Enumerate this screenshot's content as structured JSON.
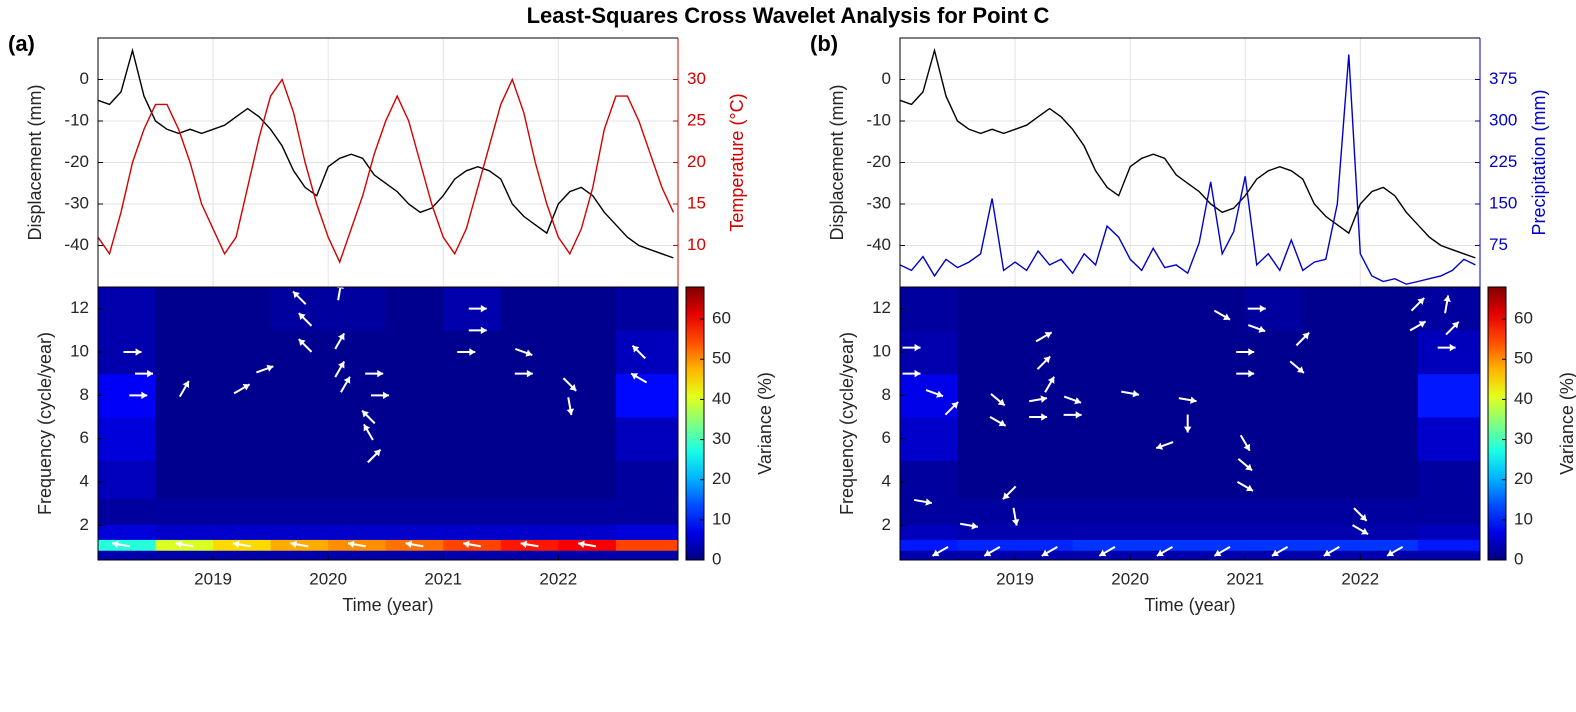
{
  "title": "Least-Squares Cross Wavelet Analysis for Point C",
  "chart_data": [
    {
      "type": "line",
      "panel_label": "(a)",
      "x": [
        2018.0,
        2018.1,
        2018.2,
        2018.3,
        2018.4,
        2018.5,
        2018.6,
        2018.7,
        2018.8,
        2018.9,
        2019.0,
        2019.1,
        2019.2,
        2019.3,
        2019.4,
        2019.5,
        2019.6,
        2019.7,
        2019.8,
        2019.9,
        2020.0,
        2020.1,
        2020.2,
        2020.3,
        2020.4,
        2020.5,
        2020.6,
        2020.7,
        2020.8,
        2020.9,
        2021.0,
        2021.1,
        2021.2,
        2021.3,
        2021.4,
        2021.5,
        2021.6,
        2021.7,
        2021.8,
        2021.9,
        2022.0,
        2022.1,
        2022.2,
        2022.3,
        2022.4,
        2022.5,
        2022.6,
        2022.7,
        2022.8,
        2022.9,
        2023.0
      ],
      "xlim": [
        2018,
        2023.04
      ],
      "xticks": [
        2019,
        2020,
        2021,
        2022
      ],
      "ylim": [
        -50,
        10
      ],
      "yticks": [
        -40,
        -30,
        -20,
        -10,
        0
      ],
      "ylabel": "Displacement (mm)",
      "y2lim": [
        5,
        35
      ],
      "y2ticks": [
        10,
        15,
        20,
        25,
        30
      ],
      "y2label": "Temperature (°C)",
      "grid": true,
      "series": [
        {
          "color": "#000000",
          "values": [
            -5,
            -6,
            -3,
            7,
            -4,
            -10,
            -12,
            -13,
            -12,
            -13,
            -12,
            -11,
            -9,
            -7,
            -9,
            -12,
            -16,
            -22,
            -26,
            -28,
            -21,
            -19,
            -18,
            -19,
            -23,
            -25,
            -27,
            -30,
            -32,
            -31,
            -28,
            -24,
            -22,
            -21,
            -22,
            -24,
            -30,
            -33,
            -35,
            -37,
            -30,
            -27,
            -26,
            -28,
            -32,
            -35,
            -38,
            -40,
            -41,
            -42,
            -43
          ]
        },
        {
          "color": "#d40000",
          "axis": "y2",
          "values": [
            11,
            9,
            14,
            20,
            24,
            27,
            27,
            24,
            20,
            15,
            12,
            9,
            11,
            17,
            23,
            28,
            30,
            26,
            20,
            15,
            11,
            8,
            12,
            16,
            21,
            25,
            28,
            25,
            20,
            15,
            11,
            9,
            12,
            17,
            22,
            27,
            30,
            26,
            20,
            15,
            11,
            9,
            12,
            17,
            24,
            28,
            28,
            25,
            21,
            17,
            14
          ]
        }
      ]
    },
    {
      "type": "heatmap",
      "x": [
        2018.25,
        2018.75,
        2019.25,
        2019.75,
        2020.25,
        2020.75,
        2021.25,
        2021.75,
        2022.25,
        2022.75
      ],
      "y": [
        0.6,
        1.1,
        1.6,
        2.5,
        4,
        6,
        8,
        10,
        12
      ],
      "z": [
        [
          3,
          3,
          3,
          3,
          3,
          3,
          3,
          3,
          3,
          3
        ],
        [
          28,
          40,
          45,
          48,
          50,
          52,
          55,
          58,
          60,
          55
        ],
        [
          6,
          5,
          5,
          5,
          5,
          5,
          5,
          5,
          5,
          6
        ],
        [
          2,
          2,
          2,
          2,
          2,
          2,
          2,
          2,
          2,
          2
        ],
        [
          4,
          1,
          1,
          1,
          1,
          1,
          1,
          1,
          1,
          2
        ],
        [
          6,
          1,
          1,
          1,
          1,
          1,
          1,
          1,
          1,
          4
        ],
        [
          8,
          1,
          1,
          1,
          1,
          1,
          1,
          1,
          1,
          9
        ],
        [
          3,
          1,
          1,
          1,
          1,
          1,
          1,
          1,
          1,
          4
        ],
        [
          3,
          1,
          1,
          2,
          2,
          1,
          3,
          1,
          1,
          2
        ]
      ],
      "xlim": [
        2018,
        2023.04
      ],
      "xticks": [
        2019,
        2020,
        2021,
        2022
      ],
      "xlabel": "Time (year)",
      "ylim": [
        0.4,
        13
      ],
      "yticks": [
        2,
        4,
        6,
        8,
        10,
        12
      ],
      "ylabel": "Frequency (cycle/year)",
      "clim": [
        0,
        68
      ],
      "cticks": [
        0,
        10,
        20,
        30,
        40,
        50,
        60
      ],
      "clabel": "Variance (%)",
      "arrows": [
        {
          "x": 2018.2,
          "y": 1.1,
          "phase": 170
        },
        {
          "x": 2018.75,
          "y": 1.1,
          "phase": 170
        },
        {
          "x": 2019.25,
          "y": 1.1,
          "phase": 170
        },
        {
          "x": 2019.75,
          "y": 1.1,
          "phase": 170
        },
        {
          "x": 2020.25,
          "y": 1.1,
          "phase": 170
        },
        {
          "x": 2020.75,
          "y": 1.1,
          "phase": 170
        },
        {
          "x": 2021.25,
          "y": 1.1,
          "phase": 170
        },
        {
          "x": 2021.75,
          "y": 1.1,
          "phase": 170
        },
        {
          "x": 2022.25,
          "y": 1.1,
          "phase": 170
        },
        {
          "x": 2018.3,
          "y": 10,
          "phase": 0
        },
        {
          "x": 2018.4,
          "y": 9,
          "phase": 0
        },
        {
          "x": 2018.35,
          "y": 8,
          "phase": 0
        },
        {
          "x": 2018.75,
          "y": 8.3,
          "phase": 60
        },
        {
          "x": 2019.25,
          "y": 8.3,
          "phase": 30
        },
        {
          "x": 2019.45,
          "y": 9.2,
          "phase": 20
        },
        {
          "x": 2019.75,
          "y": 12.5,
          "phase": 135
        },
        {
          "x": 2019.8,
          "y": 11.5,
          "phase": 135
        },
        {
          "x": 2019.8,
          "y": 10.3,
          "phase": 135
        },
        {
          "x": 2020.1,
          "y": 12.8,
          "phase": 80
        },
        {
          "x": 2020.1,
          "y": 10.5,
          "phase": 60
        },
        {
          "x": 2020.1,
          "y": 9.2,
          "phase": 60
        },
        {
          "x": 2020.15,
          "y": 8.5,
          "phase": 60
        },
        {
          "x": 2020.4,
          "y": 9,
          "phase": 0
        },
        {
          "x": 2020.45,
          "y": 8,
          "phase": 0
        },
        {
          "x": 2020.35,
          "y": 7,
          "phase": 135
        },
        {
          "x": 2020.35,
          "y": 6.3,
          "phase": 120
        },
        {
          "x": 2020.4,
          "y": 5.2,
          "phase": 45
        },
        {
          "x": 2021.3,
          "y": 12,
          "phase": 0
        },
        {
          "x": 2021.3,
          "y": 11,
          "phase": 0
        },
        {
          "x": 2021.2,
          "y": 10,
          "phase": 0
        },
        {
          "x": 2021.7,
          "y": 10,
          "phase": -20
        },
        {
          "x": 2021.7,
          "y": 9,
          "phase": 0
        },
        {
          "x": 2022.1,
          "y": 8.5,
          "phase": -45
        },
        {
          "x": 2022.1,
          "y": 7.5,
          "phase": -80
        },
        {
          "x": 2022.7,
          "y": 10,
          "phase": 135
        },
        {
          "x": 2022.7,
          "y": 8.8,
          "phase": 150
        }
      ]
    },
    {
      "type": "line",
      "panel_label": "(b)",
      "x": [
        2018.0,
        2018.1,
        2018.2,
        2018.3,
        2018.4,
        2018.5,
        2018.6,
        2018.7,
        2018.8,
        2018.9,
        2019.0,
        2019.1,
        2019.2,
        2019.3,
        2019.4,
        2019.5,
        2019.6,
        2019.7,
        2019.8,
        2019.9,
        2020.0,
        2020.1,
        2020.2,
        2020.3,
        2020.4,
        2020.5,
        2020.6,
        2020.7,
        2020.8,
        2020.9,
        2021.0,
        2021.1,
        2021.2,
        2021.3,
        2021.4,
        2021.5,
        2021.6,
        2021.7,
        2021.8,
        2021.9,
        2022.0,
        2022.1,
        2022.2,
        2022.3,
        2022.4,
        2022.5,
        2022.6,
        2022.7,
        2022.8,
        2022.9,
        2023.0
      ],
      "xlim": [
        2018,
        2023.04
      ],
      "xticks": [
        2019,
        2020,
        2021,
        2022
      ],
      "ylim": [
        -50,
        10
      ],
      "yticks": [
        -40,
        -30,
        -20,
        -10,
        0
      ],
      "ylabel": "Displacement (mm)",
      "y2lim": [
        0,
        450
      ],
      "y2ticks": [
        75,
        150,
        225,
        300,
        375
      ],
      "y2label": "Precipitation (mm)",
      "grid": true,
      "series": [
        {
          "color": "#000000",
          "values": [
            -5,
            -6,
            -3,
            7,
            -4,
            -10,
            -12,
            -13,
            -12,
            -13,
            -12,
            -11,
            -9,
            -7,
            -9,
            -12,
            -16,
            -22,
            -26,
            -28,
            -21,
            -19,
            -18,
            -19,
            -23,
            -25,
            -27,
            -30,
            -32,
            -31,
            -28,
            -24,
            -22,
            -21,
            -22,
            -24,
            -30,
            -33,
            -35,
            -37,
            -30,
            -27,
            -26,
            -28,
            -32,
            -35,
            -38,
            -40,
            -41,
            -42,
            -43
          ]
        },
        {
          "color": "#0000c8",
          "axis": "y2",
          "values": [
            40,
            30,
            55,
            20,
            50,
            35,
            45,
            60,
            160,
            30,
            45,
            30,
            65,
            40,
            50,
            25,
            60,
            40,
            110,
            90,
            50,
            30,
            70,
            35,
            40,
            25,
            80,
            190,
            60,
            100,
            200,
            40,
            60,
            30,
            85,
            30,
            45,
            50,
            150,
            420,
            60,
            20,
            10,
            15,
            5,
            10,
            15,
            20,
            30,
            50,
            40
          ]
        }
      ]
    },
    {
      "type": "heatmap",
      "x": [
        2018.25,
        2018.75,
        2019.25,
        2019.75,
        2020.25,
        2020.75,
        2021.25,
        2021.75,
        2022.25,
        2022.75
      ],
      "y": [
        0.6,
        1.1,
        1.6,
        2.5,
        4,
        6,
        8,
        10,
        12
      ],
      "z": [
        [
          3,
          3,
          3,
          3,
          3,
          3,
          3,
          3,
          3,
          3
        ],
        [
          10,
          11,
          11,
          12,
          12,
          12,
          12,
          12,
          12,
          10
        ],
        [
          4,
          3,
          3,
          3,
          3,
          3,
          3,
          3,
          3,
          4
        ],
        [
          2,
          2,
          2,
          2,
          2,
          2,
          2,
          2,
          2,
          2
        ],
        [
          2,
          1,
          1,
          1,
          1,
          1,
          1,
          1,
          1,
          2
        ],
        [
          5,
          1,
          1,
          1,
          1,
          1,
          1,
          1,
          1,
          5
        ],
        [
          7,
          1,
          1,
          1,
          1,
          1,
          1,
          1,
          1,
          10
        ],
        [
          3,
          1,
          1,
          1,
          1,
          1,
          1,
          1,
          1,
          4
        ],
        [
          2,
          1,
          1,
          1,
          1,
          1,
          2,
          1,
          1,
          2
        ]
      ],
      "xlim": [
        2018,
        2023.04
      ],
      "xticks": [
        2019,
        2020,
        2021,
        2022
      ],
      "xlabel": "Time (year)",
      "ylim": [
        0.4,
        13
      ],
      "yticks": [
        2,
        4,
        6,
        8,
        10,
        12
      ],
      "ylabel": "Frequency (cycle/year)",
      "clim": [
        0,
        68
      ],
      "cticks": [
        0,
        10,
        20,
        30,
        40,
        50,
        60
      ],
      "clabel": "Variance (%)",
      "arrows": [
        {
          "x": 2018.35,
          "y": 0.8,
          "phase": 210
        },
        {
          "x": 2018.8,
          "y": 0.8,
          "phase": 210
        },
        {
          "x": 2019.3,
          "y": 0.8,
          "phase": 210
        },
        {
          "x": 2019.8,
          "y": 0.8,
          "phase": 210
        },
        {
          "x": 2020.3,
          "y": 0.8,
          "phase": 210
        },
        {
          "x": 2020.8,
          "y": 0.8,
          "phase": 210
        },
        {
          "x": 2021.3,
          "y": 0.8,
          "phase": 210
        },
        {
          "x": 2021.75,
          "y": 0.8,
          "phase": 210
        },
        {
          "x": 2022.3,
          "y": 0.8,
          "phase": 210
        },
        {
          "x": 2018.1,
          "y": 10.2,
          "phase": 0
        },
        {
          "x": 2018.1,
          "y": 9,
          "phase": 0
        },
        {
          "x": 2018.3,
          "y": 8.1,
          "phase": -20
        },
        {
          "x": 2018.45,
          "y": 7.4,
          "phase": 45
        },
        {
          "x": 2018.85,
          "y": 7.8,
          "phase": -40
        },
        {
          "x": 2018.85,
          "y": 6.8,
          "phase": -30
        },
        {
          "x": 2019.25,
          "y": 10.7,
          "phase": 30
        },
        {
          "x": 2019.25,
          "y": 9.5,
          "phase": 45
        },
        {
          "x": 2019.3,
          "y": 8.5,
          "phase": 60
        },
        {
          "x": 2019.2,
          "y": 7.8,
          "phase": 10
        },
        {
          "x": 2019.2,
          "y": 7,
          "phase": 0
        },
        {
          "x": 2019.5,
          "y": 7.8,
          "phase": -20
        },
        {
          "x": 2019.5,
          "y": 7.1,
          "phase": 0
        },
        {
          "x": 2020.0,
          "y": 8.1,
          "phase": -10
        },
        {
          "x": 2020.5,
          "y": 7.8,
          "phase": -10
        },
        {
          "x": 2020.5,
          "y": 6.7,
          "phase": -90
        },
        {
          "x": 2020.3,
          "y": 5.7,
          "phase": 200
        },
        {
          "x": 2020.8,
          "y": 11.7,
          "phase": -30
        },
        {
          "x": 2021.1,
          "y": 12,
          "phase": 0
        },
        {
          "x": 2021.1,
          "y": 11.1,
          "phase": -20
        },
        {
          "x": 2021.0,
          "y": 10,
          "phase": 0
        },
        {
          "x": 2021.0,
          "y": 9,
          "phase": 0
        },
        {
          "x": 2021.45,
          "y": 9.3,
          "phase": -40
        },
        {
          "x": 2021.5,
          "y": 10.6,
          "phase": 45
        },
        {
          "x": 2021.0,
          "y": 5.8,
          "phase": -60
        },
        {
          "x": 2021.0,
          "y": 4.8,
          "phase": -40
        },
        {
          "x": 2021.0,
          "y": 3.8,
          "phase": -30
        },
        {
          "x": 2018.2,
          "y": 3.1,
          "phase": -10
        },
        {
          "x": 2018.95,
          "y": 3.5,
          "phase": 225
        },
        {
          "x": 2019.0,
          "y": 2.4,
          "phase": -80
        },
        {
          "x": 2018.6,
          "y": 2.0,
          "phase": -10
        },
        {
          "x": 2022.0,
          "y": 2.5,
          "phase": -45
        },
        {
          "x": 2022.0,
          "y": 1.8,
          "phase": -30
        },
        {
          "x": 2022.5,
          "y": 12.2,
          "phase": 45
        },
        {
          "x": 2022.5,
          "y": 11.2,
          "phase": 30
        },
        {
          "x": 2022.75,
          "y": 12.2,
          "phase": 80
        },
        {
          "x": 2022.8,
          "y": 11.1,
          "phase": 45
        },
        {
          "x": 2022.75,
          "y": 10.2,
          "phase": 0
        }
      ]
    }
  ]
}
